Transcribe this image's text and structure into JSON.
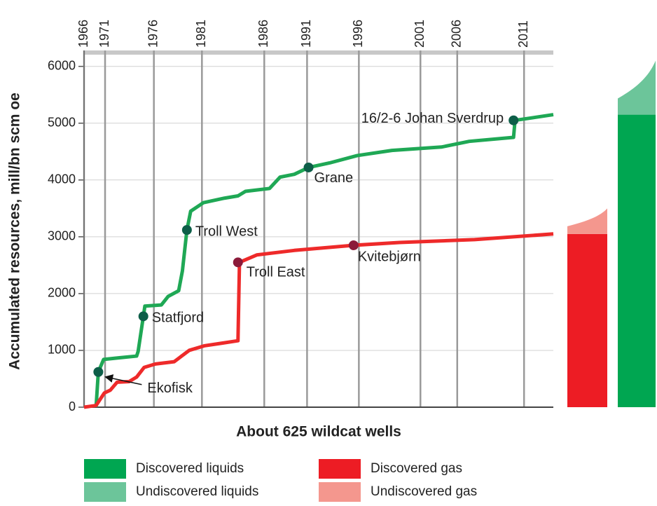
{
  "chart_data": {
    "type": "line",
    "ylabel": "Accumulated resources, mill/bn scm oe",
    "xlabel": "About 625 wildcat wells",
    "xlim": [
      0,
      625
    ],
    "ylim": [
      0,
      6280
    ],
    "yticks": [
      0,
      1000,
      2000,
      3000,
      4000,
      5000,
      6000
    ],
    "x2ticks": [
      {
        "value": 0,
        "label": "1966"
      },
      {
        "value": 28,
        "label": "1971"
      },
      {
        "value": 93,
        "label": "1976"
      },
      {
        "value": 157,
        "label": "1981"
      },
      {
        "value": 240,
        "label": "1986"
      },
      {
        "value": 297,
        "label": "1991"
      },
      {
        "value": 366,
        "label": "1996"
      },
      {
        "value": 448,
        "label": "2001"
      },
      {
        "value": 497,
        "label": "2006"
      },
      {
        "value": 586,
        "label": "2011"
      }
    ],
    "grid": true,
    "lines": [
      {
        "color": "#1fa855",
        "x": [
          16,
          19,
          26,
          47,
          70,
          72,
          79,
          81,
          103,
          112,
          126,
          131,
          137,
          142,
          159,
          187,
          205,
          215,
          247,
          261,
          280,
          299,
          327,
          364,
          410,
          476,
          513,
          572,
          574,
          625
        ],
        "values": [
          0,
          620,
          840,
          870,
          900,
          980,
          1600,
          1780,
          1800,
          1950,
          2050,
          2400,
          3120,
          3450,
          3600,
          3680,
          3720,
          3800,
          3850,
          4050,
          4100,
          4220,
          4300,
          4430,
          4520,
          4580,
          4680,
          4750,
          5050,
          5150
        ]
      },
      {
        "color": "#ee2a2a",
        "x": [
          0,
          16,
          22,
          27,
          35,
          44,
          60,
          70,
          80,
          95,
          120,
          130,
          140,
          160,
          180,
          205,
          207,
          230,
          280,
          359,
          420,
          520,
          625
        ],
        "values": [
          0,
          30,
          150,
          250,
          300,
          440,
          450,
          530,
          700,
          760,
          800,
          900,
          1000,
          1080,
          1120,
          1170,
          2550,
          2680,
          2760,
          2850,
          2900,
          2950,
          3050
        ]
      }
    ],
    "annotations": [
      {
        "text": "Ekofisk",
        "x": 19,
        "y": 620,
        "line": 0
      },
      {
        "text": "Statfjord",
        "x": 79,
        "y": 1600,
        "line": 0
      },
      {
        "text": "Troll West",
        "x": 137,
        "y": 3120,
        "line": 0
      },
      {
        "text": "Troll East",
        "x": 205,
        "y": 2550,
        "line": 1
      },
      {
        "text": "Grane",
        "x": 299,
        "y": 4220,
        "line": 0
      },
      {
        "text": "Kvitebjørn",
        "x": 359,
        "y": 2850,
        "line": 1
      },
      {
        "text": "16/2-6 Johan Sverdrup",
        "x": 572,
        "y": 5050,
        "line": 0
      }
    ],
    "stacks": [
      {
        "segments": [
          {
            "name": "Discovered gas",
            "color": "#ed1c24",
            "value": 3050
          },
          {
            "name": "Undiscovered gas",
            "color": "#f4978e",
            "value": 450
          }
        ]
      },
      {
        "segments": [
          {
            "name": "Discovered liquids",
            "color": "#00a651",
            "value": 5150
          },
          {
            "name": "Undiscovered liquids",
            "color": "#6cc59a",
            "value": 950
          }
        ]
      }
    ]
  }
}
